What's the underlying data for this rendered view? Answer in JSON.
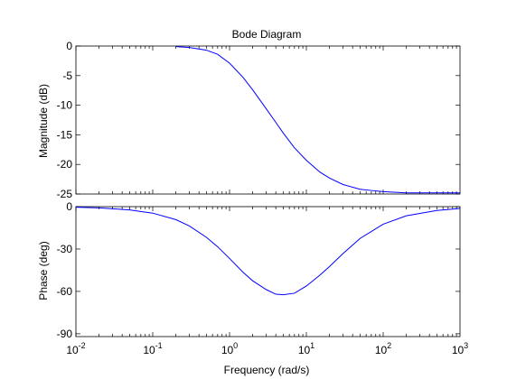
{
  "chart_data": {
    "type": "line",
    "title": "Bode Diagram",
    "xlabel": "Frequency  (rad/s)",
    "x_scale": "log",
    "x_ticks": [
      "10^-2",
      "10^-1",
      "10^0",
      "10^1",
      "10^2",
      "10^3"
    ],
    "x_tick_values": [
      0.01,
      0.1,
      1,
      10,
      100,
      1000
    ],
    "line_color": "#0000ff",
    "grid": false,
    "panels": [
      {
        "name": "magnitude",
        "ylabel": "Magnitude (dB)",
        "ylim": [
          -25,
          0
        ],
        "y_ticks": [
          "0",
          "-5",
          "-10",
          "-15",
          "-20",
          "-25"
        ],
        "y_tick_values": [
          0,
          -5,
          -10,
          -15,
          -20,
          -25
        ],
        "series": [
          {
            "x": [
              0.2,
              0.3,
              0.5,
              0.7,
              1,
              1.5,
              2,
              3,
              4,
              5,
              7,
              10,
              15,
              20,
              30,
              50,
              70,
              100,
              200,
              500,
              1000
            ],
            "y": [
              -0.1,
              -0.25,
              -0.7,
              -1.4,
              -2.9,
              -5.3,
              -7.4,
              -10.6,
              -12.9,
              -14.7,
              -17.2,
              -19.3,
              -21.3,
              -22.3,
              -23.4,
              -24.2,
              -24.4,
              -24.6,
              -24.8,
              -24.8,
              -24.8
            ]
          }
        ]
      },
      {
        "name": "phase",
        "ylabel": "Phase (deg)",
        "ylim": [
          -92,
          0
        ],
        "y_ticks": [
          "0",
          "-30",
          "-60",
          "-90"
        ],
        "y_tick_values": [
          0,
          -30,
          -60,
          -90
        ],
        "series": [
          {
            "x": [
              0.01,
              0.02,
              0.05,
              0.1,
              0.2,
              0.3,
              0.5,
              0.7,
              1,
              1.5,
              2,
              3,
              4,
              5,
              7,
              10,
              15,
              20,
              30,
              50,
              100,
              200,
              500,
              1000
            ],
            "y": [
              -0.4,
              -0.9,
              -2.3,
              -4.6,
              -9.2,
              -13.7,
              -21.7,
              -28.4,
              -36.7,
              -46.5,
              -52.5,
              -58.7,
              -62.0,
              -62.4,
              -61.3,
              -56.2,
              -48.5,
              -42.4,
              -33.2,
              -22.5,
              -12.4,
              -6.5,
              -2.7,
              -1.3
            ]
          }
        ]
      }
    ]
  }
}
